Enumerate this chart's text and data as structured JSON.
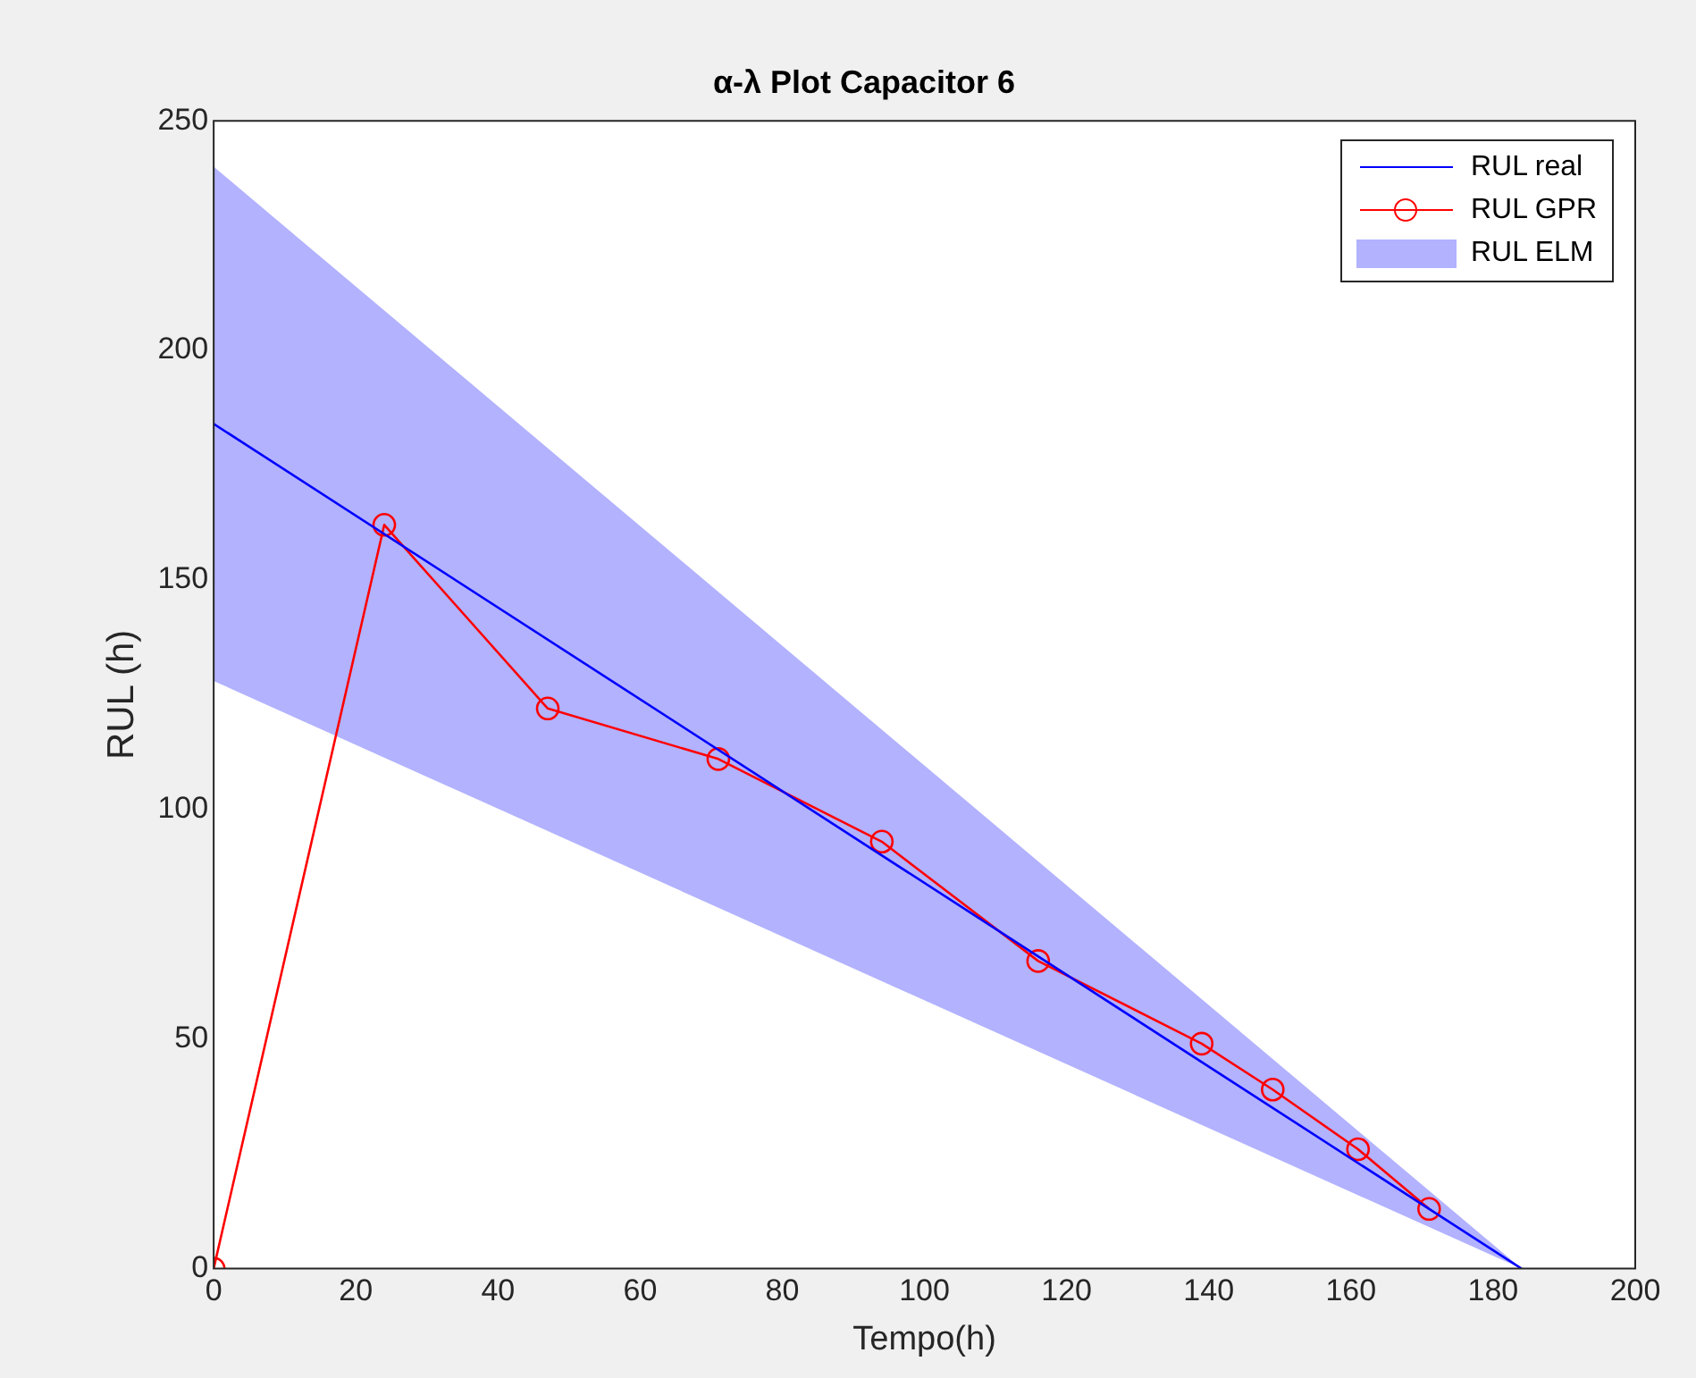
{
  "chart_data": {
    "type": "line",
    "title": "α-λ Plot Capacitor 6",
    "xlabel": "Tempo(h)",
    "ylabel": "RUL (h)",
    "xlim": [
      0,
      200
    ],
    "xticks": [
      0,
      20,
      40,
      60,
      80,
      100,
      120,
      140,
      160,
      180,
      200
    ],
    "ylim": [
      0,
      250
    ],
    "yticks": [
      0,
      50,
      100,
      150,
      200,
      250
    ],
    "grid": false,
    "legend": "top right",
    "series": [
      {
        "name": "RUL real",
        "type": "line",
        "color": "#0000ff",
        "x": [
          0,
          184
        ],
        "values": [
          184,
          0
        ],
        "marker": "none"
      },
      {
        "name": "RUL GPR",
        "type": "line",
        "color": "#ff0000",
        "x": [
          0,
          24,
          47,
          71,
          94,
          116,
          139,
          149,
          161,
          171
        ],
        "values": [
          0,
          162,
          122,
          111,
          93,
          67,
          49,
          39,
          26,
          13
        ],
        "marker": "circle"
      },
      {
        "name": "RUL ELM",
        "type": "line",
        "color": "#b2b2ff",
        "x": [
          0,
          184
        ],
        "values": [
          null,
          null
        ],
        "lower": [
          128,
          0
        ],
        "upper": [
          240,
          0
        ],
        "marker": "none"
      }
    ]
  }
}
